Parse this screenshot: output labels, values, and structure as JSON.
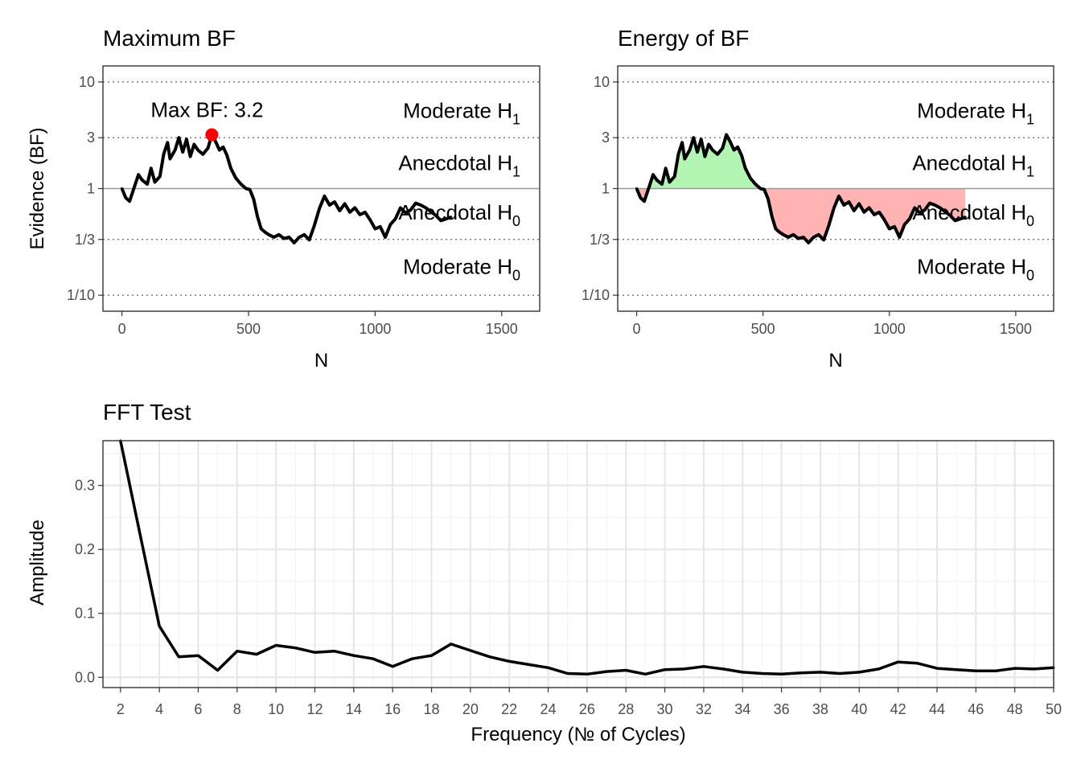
{
  "chart_data": [
    {
      "type": "line",
      "title": "Maximum BF",
      "xlabel": "N",
      "ylabel": "Evidence (BF)",
      "xlim": [
        -75,
        1650
      ],
      "ylim_log10": [
        -1.15,
        1.15
      ],
      "x_ticks": [
        0,
        500,
        1000,
        1500
      ],
      "y_ticks": [
        {
          "v": 10,
          "l": "10"
        },
        {
          "v": 3,
          "l": "3"
        },
        {
          "v": 1,
          "l": "1"
        },
        {
          "v": 0.3333,
          "l": "1/3"
        },
        {
          "v": 0.1,
          "l": "1/10"
        }
      ],
      "reference_line": 1,
      "dotted_lines": [
        10,
        3,
        0.3333,
        0.1
      ],
      "regions": [
        {
          "main": "Moderate H",
          "sub": "1",
          "at": 5.4
        },
        {
          "main": "Anecdotal H",
          "sub": "1",
          "at": 1.75
        },
        {
          "main": "Anecdotal H",
          "sub": "0",
          "at": 0.6
        },
        {
          "main": "Moderate H",
          "sub": "0",
          "at": 0.185
        }
      ],
      "annotation": "Max BF: 3.2",
      "max_point": {
        "x": 355,
        "y": 3.2
      },
      "x": [
        0,
        15,
        30,
        50,
        65,
        80,
        100,
        115,
        130,
        150,
        165,
        180,
        190,
        210,
        225,
        240,
        255,
        270,
        285,
        300,
        320,
        340,
        355,
        370,
        385,
        400,
        415,
        430,
        450,
        470,
        490,
        505,
        520,
        535,
        550,
        565,
        580,
        600,
        620,
        640,
        660,
        680,
        700,
        720,
        740,
        760,
        780,
        800,
        820,
        840,
        860,
        880,
        900,
        920,
        940,
        960,
        980,
        1000,
        1020,
        1040,
        1060,
        1080,
        1100,
        1120,
        1140,
        1160,
        1180,
        1200,
        1220,
        1240,
        1260,
        1280,
        1300
      ],
      "y": [
        1.0,
        0.82,
        0.76,
        1.05,
        1.35,
        1.2,
        1.1,
        1.55,
        1.15,
        1.3,
        2.1,
        2.7,
        1.9,
        2.3,
        3.0,
        2.2,
        2.9,
        2.0,
        2.6,
        2.3,
        2.1,
        2.4,
        3.2,
        2.75,
        2.3,
        2.45,
        2.05,
        1.55,
        1.25,
        1.1,
        1.0,
        0.98,
        0.8,
        0.55,
        0.42,
        0.39,
        0.37,
        0.35,
        0.37,
        0.34,
        0.35,
        0.31,
        0.35,
        0.37,
        0.33,
        0.45,
        0.65,
        0.85,
        0.7,
        0.75,
        0.62,
        0.72,
        0.6,
        0.66,
        0.57,
        0.6,
        0.51,
        0.42,
        0.44,
        0.35,
        0.46,
        0.52,
        0.66,
        0.59,
        0.63,
        0.73,
        0.7,
        0.66,
        0.61,
        0.56,
        0.5,
        0.52,
        0.54
      ]
    },
    {
      "type": "area",
      "title": "Energy of BF",
      "xlabel": "N",
      "ylabel": "",
      "xlim": [
        -75,
        1650
      ],
      "ylim_log10": [
        -1.15,
        1.15
      ],
      "x_ticks": [
        0,
        500,
        1000,
        1500
      ],
      "y_ticks": [
        {
          "v": 10,
          "l": "10"
        },
        {
          "v": 3,
          "l": "3"
        },
        {
          "v": 1,
          "l": "1"
        },
        {
          "v": 0.3333,
          "l": "1/3"
        },
        {
          "v": 0.1,
          "l": "1/10"
        }
      ],
      "reference_line": 1,
      "dotted_lines": [
        10,
        3,
        0.3333,
        0.1
      ],
      "regions": [
        {
          "main": "Moderate H",
          "sub": "1",
          "at": 5.4
        },
        {
          "main": "Anecdotal H",
          "sub": "1",
          "at": 1.75
        },
        {
          "main": "Anecdotal H",
          "sub": "0",
          "at": 0.6
        },
        {
          "main": "Moderate H",
          "sub": "0",
          "at": 0.185
        }
      ],
      "fill_above_color": "#b3f5b3",
      "fill_below_color": "#ffb3b3",
      "x": [
        0,
        15,
        30,
        50,
        65,
        80,
        100,
        115,
        130,
        150,
        165,
        180,
        190,
        210,
        225,
        240,
        255,
        270,
        285,
        300,
        320,
        340,
        355,
        370,
        385,
        400,
        415,
        430,
        450,
        470,
        490,
        505,
        520,
        535,
        550,
        565,
        580,
        600,
        620,
        640,
        660,
        680,
        700,
        720,
        740,
        760,
        780,
        800,
        820,
        840,
        860,
        880,
        900,
        920,
        940,
        960,
        980,
        1000,
        1020,
        1040,
        1060,
        1080,
        1100,
        1120,
        1140,
        1160,
        1180,
        1200,
        1220,
        1240,
        1260,
        1280,
        1300
      ],
      "y": [
        1.0,
        0.82,
        0.76,
        1.05,
        1.35,
        1.2,
        1.1,
        1.55,
        1.15,
        1.3,
        2.1,
        2.7,
        1.9,
        2.3,
        3.0,
        2.2,
        2.9,
        2.0,
        2.6,
        2.3,
        2.1,
        2.4,
        3.2,
        2.75,
        2.3,
        2.45,
        2.05,
        1.55,
        1.25,
        1.1,
        1.0,
        0.98,
        0.8,
        0.55,
        0.42,
        0.39,
        0.37,
        0.35,
        0.37,
        0.34,
        0.35,
        0.31,
        0.35,
        0.37,
        0.33,
        0.45,
        0.65,
        0.85,
        0.7,
        0.75,
        0.62,
        0.72,
        0.6,
        0.66,
        0.57,
        0.6,
        0.51,
        0.42,
        0.44,
        0.35,
        0.46,
        0.52,
        0.66,
        0.59,
        0.63,
        0.73,
        0.7,
        0.66,
        0.61,
        0.56,
        0.5,
        0.52,
        0.54
      ]
    },
    {
      "type": "line",
      "title": "FFT Test",
      "xlabel": "Frequency (№ of Cycles)",
      "ylabel": "Amplitude",
      "xlim": [
        1.1,
        50
      ],
      "ylim": [
        -0.016,
        0.37
      ],
      "x_ticks": [
        2,
        4,
        6,
        8,
        10,
        12,
        14,
        16,
        18,
        20,
        22,
        24,
        26,
        28,
        30,
        32,
        34,
        36,
        38,
        40,
        42,
        44,
        46,
        48,
        50
      ],
      "y_ticks": [
        0.0,
        0.1,
        0.2,
        0.3
      ],
      "y_tick_labels": [
        "0.0",
        "0.1",
        "0.2",
        "0.3"
      ],
      "grid": true,
      "x": [
        2,
        3,
        4,
        5,
        6,
        7,
        8,
        9,
        10,
        11,
        12,
        13,
        14,
        15,
        16,
        17,
        18,
        19,
        20,
        21,
        22,
        23,
        24,
        25,
        26,
        27,
        28,
        29,
        30,
        31,
        32,
        33,
        34,
        35,
        36,
        37,
        38,
        39,
        40,
        41,
        42,
        43,
        44,
        45,
        46,
        47,
        48,
        49,
        50
      ],
      "y": [
        0.37,
        0.225,
        0.08,
        0.032,
        0.034,
        0.011,
        0.041,
        0.036,
        0.05,
        0.046,
        0.039,
        0.041,
        0.034,
        0.029,
        0.017,
        0.029,
        0.034,
        0.052,
        0.042,
        0.032,
        0.025,
        0.02,
        0.015,
        0.006,
        0.005,
        0.009,
        0.011,
        0.005,
        0.012,
        0.013,
        0.017,
        0.013,
        0.008,
        0.006,
        0.005,
        0.007,
        0.008,
        0.006,
        0.008,
        0.013,
        0.024,
        0.022,
        0.014,
        0.012,
        0.01,
        0.01,
        0.014,
        0.013,
        0.015
      ]
    }
  ]
}
